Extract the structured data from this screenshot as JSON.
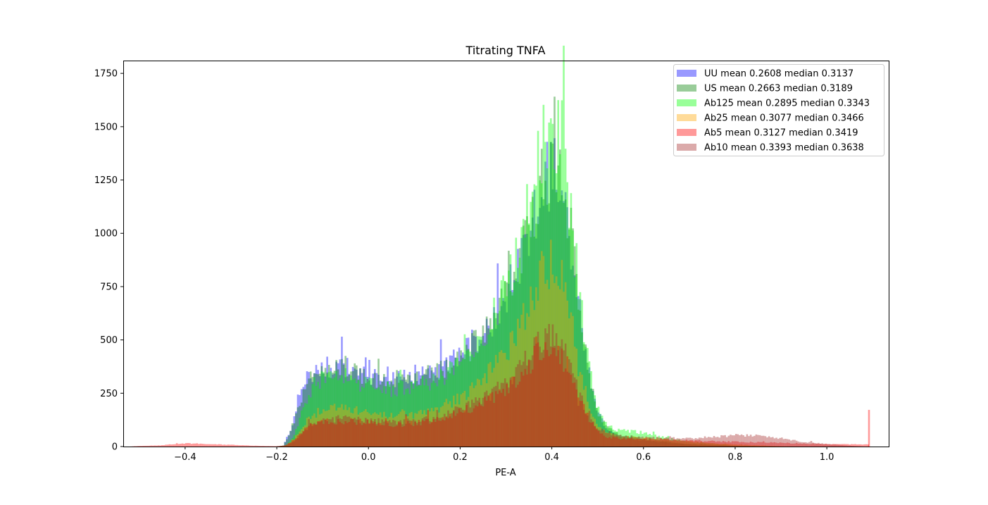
{
  "chart_data": {
    "type": "histogram",
    "title": "Titrating TNFA",
    "xlabel": "PE-A",
    "ylabel": "",
    "xlim": [
      -0.535,
      1.135
    ],
    "ylim": [
      0,
      1810
    ],
    "xticks": [
      -0.4,
      -0.2,
      0.0,
      0.2,
      0.4,
      0.6,
      0.8,
      1.0
    ],
    "xtick_labels": [
      "−0.4",
      "−0.2",
      "0.0",
      "0.2",
      "0.4",
      "0.6",
      "0.8",
      "1.0"
    ],
    "yticks": [
      0,
      250,
      500,
      750,
      1000,
      1250,
      1500,
      1750
    ],
    "ytick_labels": [
      "0",
      "250",
      "500",
      "750",
      "1000",
      "1250",
      "1500",
      "1750"
    ],
    "grid": false,
    "legend_position": "top-right",
    "bin_width": 0.004,
    "series": [
      {
        "name": "UU mean 0.2608 median 0.3137",
        "color": "#0000ff",
        "alpha": 0.4,
        "mean": 0.2608,
        "median": 0.3137,
        "points": [
          [
            -0.2,
            0
          ],
          [
            -0.185,
            5
          ],
          [
            -0.17,
            80
          ],
          [
            -0.15,
            230
          ],
          [
            -0.13,
            330
          ],
          [
            -0.1,
            390
          ],
          [
            -0.08,
            360
          ],
          [
            -0.05,
            370
          ],
          [
            -0.02,
            340
          ],
          [
            0.0,
            330
          ],
          [
            0.05,
            320
          ],
          [
            0.1,
            340
          ],
          [
            0.15,
            360
          ],
          [
            0.2,
            430
          ],
          [
            0.25,
            530
          ],
          [
            0.3,
            700
          ],
          [
            0.33,
            850
          ],
          [
            0.36,
            1050
          ],
          [
            0.38,
            1220
          ],
          [
            0.4,
            1300
          ],
          [
            0.42,
            1230
          ],
          [
            0.44,
            1000
          ],
          [
            0.46,
            650
          ],
          [
            0.48,
            350
          ],
          [
            0.5,
            160
          ],
          [
            0.52,
            80
          ],
          [
            0.55,
            45
          ],
          [
            0.6,
            28
          ],
          [
            0.7,
            10
          ],
          [
            0.8,
            3
          ],
          [
            0.9,
            0
          ]
        ]
      },
      {
        "name": "US mean 0.2663 median 0.3189",
        "color": "#008000",
        "alpha": 0.4,
        "mean": 0.2663,
        "median": 0.3189,
        "points": [
          [
            -0.2,
            0
          ],
          [
            -0.185,
            5
          ],
          [
            -0.17,
            70
          ],
          [
            -0.15,
            210
          ],
          [
            -0.13,
            320
          ],
          [
            -0.1,
            380
          ],
          [
            -0.08,
            370
          ],
          [
            -0.05,
            360
          ],
          [
            -0.02,
            340
          ],
          [
            0.0,
            320
          ],
          [
            0.05,
            310
          ],
          [
            0.1,
            320
          ],
          [
            0.15,
            350
          ],
          [
            0.2,
            420
          ],
          [
            0.25,
            520
          ],
          [
            0.3,
            700
          ],
          [
            0.33,
            860
          ],
          [
            0.36,
            1080
          ],
          [
            0.38,
            1260
          ],
          [
            0.4,
            1330
          ],
          [
            0.42,
            1260
          ],
          [
            0.44,
            1020
          ],
          [
            0.46,
            660
          ],
          [
            0.48,
            360
          ],
          [
            0.5,
            170
          ],
          [
            0.52,
            90
          ],
          [
            0.55,
            55
          ],
          [
            0.6,
            35
          ],
          [
            0.7,
            12
          ],
          [
            0.8,
            4
          ],
          [
            0.9,
            0
          ]
        ]
      },
      {
        "name": "Ab125 mean 0.2895 median 0.3343",
        "color": "#00ff00",
        "alpha": 0.4,
        "mean": 0.2895,
        "median": 0.3343,
        "points": [
          [
            -0.2,
            0
          ],
          [
            -0.18,
            5
          ],
          [
            -0.16,
            60
          ],
          [
            -0.14,
            200
          ],
          [
            -0.12,
            290
          ],
          [
            -0.1,
            320
          ],
          [
            -0.07,
            330
          ],
          [
            -0.04,
            320
          ],
          [
            -0.02,
            300
          ],
          [
            0.0,
            290
          ],
          [
            0.05,
            270
          ],
          [
            0.1,
            280
          ],
          [
            0.15,
            310
          ],
          [
            0.2,
            390
          ],
          [
            0.25,
            520
          ],
          [
            0.3,
            740
          ],
          [
            0.33,
            940
          ],
          [
            0.36,
            1230
          ],
          [
            0.38,
            1440
          ],
          [
            0.4,
            1510
          ],
          [
            0.42,
            1400
          ],
          [
            0.44,
            1120
          ],
          [
            0.46,
            720
          ],
          [
            0.48,
            390
          ],
          [
            0.5,
            180
          ],
          [
            0.52,
            100
          ],
          [
            0.55,
            75
          ],
          [
            0.6,
            65
          ],
          [
            0.65,
            40
          ],
          [
            0.7,
            22
          ],
          [
            0.8,
            5
          ],
          [
            0.9,
            0
          ]
        ]
      },
      {
        "name": "Ab25 mean 0.3077 median 0.3466",
        "color": "#ffa500",
        "alpha": 0.4,
        "mean": 0.3077,
        "median": 0.3466,
        "points": [
          [
            -0.2,
            0
          ],
          [
            -0.18,
            5
          ],
          [
            -0.16,
            40
          ],
          [
            -0.14,
            110
          ],
          [
            -0.12,
            150
          ],
          [
            -0.1,
            170
          ],
          [
            -0.07,
            180
          ],
          [
            -0.04,
            175
          ],
          [
            0.0,
            160
          ],
          [
            0.05,
            150
          ],
          [
            0.1,
            160
          ],
          [
            0.15,
            180
          ],
          [
            0.2,
            230
          ],
          [
            0.25,
            310
          ],
          [
            0.3,
            440
          ],
          [
            0.33,
            560
          ],
          [
            0.36,
            710
          ],
          [
            0.38,
            820
          ],
          [
            0.4,
            870
          ],
          [
            0.42,
            800
          ],
          [
            0.44,
            640
          ],
          [
            0.46,
            400
          ],
          [
            0.48,
            210
          ],
          [
            0.5,
            100
          ],
          [
            0.52,
            60
          ],
          [
            0.55,
            45
          ],
          [
            0.6,
            40
          ],
          [
            0.7,
            25
          ],
          [
            0.8,
            10
          ],
          [
            0.9,
            2
          ],
          [
            0.95,
            0
          ]
        ]
      },
      {
        "name": "Ab5 mean 0.3127 median 0.3419",
        "color": "#ff0000",
        "alpha": 0.4,
        "mean": 0.3127,
        "median": 0.3419,
        "points": [
          [
            -0.52,
            0
          ],
          [
            -0.5,
            3
          ],
          [
            -0.45,
            6
          ],
          [
            -0.42,
            12
          ],
          [
            -0.4,
            15
          ],
          [
            -0.35,
            12
          ],
          [
            -0.3,
            8
          ],
          [
            -0.25,
            4
          ],
          [
            -0.2,
            2
          ],
          [
            -0.18,
            5
          ],
          [
            -0.16,
            35
          ],
          [
            -0.14,
            80
          ],
          [
            -0.12,
            105
          ],
          [
            -0.1,
            115
          ],
          [
            -0.07,
            120
          ],
          [
            -0.04,
            118
          ],
          [
            0.0,
            112
          ],
          [
            0.05,
            105
          ],
          [
            0.1,
            110
          ],
          [
            0.15,
            125
          ],
          [
            0.2,
            160
          ],
          [
            0.25,
            200
          ],
          [
            0.3,
            270
          ],
          [
            0.33,
            330
          ],
          [
            0.36,
            410
          ],
          [
            0.38,
            455
          ],
          [
            0.4,
            470
          ],
          [
            0.42,
            430
          ],
          [
            0.44,
            350
          ],
          [
            0.46,
            230
          ],
          [
            0.48,
            130
          ],
          [
            0.5,
            70
          ],
          [
            0.52,
            45
          ],
          [
            0.55,
            38
          ],
          [
            0.6,
            35
          ],
          [
            0.7,
            28
          ],
          [
            0.8,
            22
          ],
          [
            0.9,
            17
          ],
          [
            1.0,
            12
          ],
          [
            1.08,
            10
          ],
          [
            1.092,
            10
          ]
        ],
        "spike": [
          1.09,
          172
        ]
      },
      {
        "name": "Ab10 mean 0.3393 median 0.3638",
        "color": "#a52a2a",
        "alpha": 0.4,
        "mean": 0.3393,
        "median": 0.3638,
        "points": [
          [
            -0.2,
            0
          ],
          [
            -0.18,
            5
          ],
          [
            -0.16,
            30
          ],
          [
            -0.14,
            80
          ],
          [
            -0.12,
            110
          ],
          [
            -0.1,
            125
          ],
          [
            -0.07,
            130
          ],
          [
            -0.04,
            128
          ],
          [
            0.0,
            120
          ],
          [
            0.05,
            112
          ],
          [
            0.1,
            118
          ],
          [
            0.15,
            135
          ],
          [
            0.2,
            175
          ],
          [
            0.25,
            220
          ],
          [
            0.3,
            300
          ],
          [
            0.33,
            370
          ],
          [
            0.36,
            450
          ],
          [
            0.38,
            500
          ],
          [
            0.4,
            520
          ],
          [
            0.42,
            470
          ],
          [
            0.44,
            380
          ],
          [
            0.46,
            250
          ],
          [
            0.48,
            140
          ],
          [
            0.5,
            80
          ],
          [
            0.55,
            50
          ],
          [
            0.6,
            42
          ],
          [
            0.7,
            38
          ],
          [
            0.75,
            45
          ],
          [
            0.8,
            52
          ],
          [
            0.85,
            50
          ],
          [
            0.9,
            38
          ],
          [
            0.95,
            22
          ],
          [
            1.0,
            12
          ],
          [
            1.05,
            4
          ],
          [
            1.08,
            0
          ]
        ]
      }
    ]
  }
}
